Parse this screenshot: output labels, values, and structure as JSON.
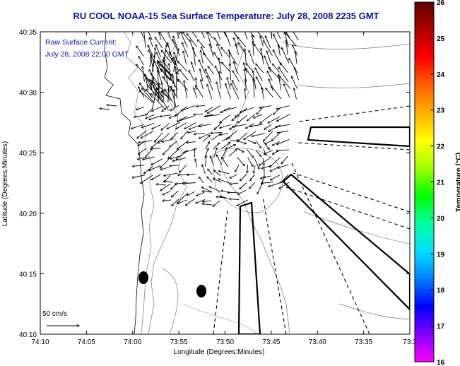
{
  "title": "RU COOL  NOAA-15  Sea Surface Temperature:  July 28, 2008 2235 GMT",
  "current_label": {
    "line1": "Raw Surface Current:",
    "line2": "July 28, 2008 22:00 GMT"
  },
  "scale_label": "50 cm/s",
  "axes": {
    "xlabel": "Longitude (Degrees:Minutes)",
    "ylabel": "Latitude (Degrees:Minutes)",
    "x_ticks": [
      "74:10",
      "74:05",
      "74:00",
      "73:55",
      "73:50",
      "73:45",
      "73:40",
      "73:35",
      "73:3"
    ],
    "y_ticks": [
      "40:35",
      "40:30",
      "40:25",
      "40:20",
      "40:15",
      "40:10"
    ]
  },
  "colorbar": {
    "label": "Temperature (°C)",
    "ticks": [
      "26",
      "25",
      "24",
      "23",
      "22",
      "21",
      "20",
      "19",
      "18",
      "17",
      "16"
    ],
    "min": 16,
    "max": 26,
    "colors": [
      "#ff00ff",
      "#8000ff",
      "#0000ff",
      "#0080ff",
      "#00e0ff",
      "#00ffa0",
      "#00ff00",
      "#a0ff00",
      "#ffff00",
      "#ffb000",
      "#ff6000",
      "#ff0000",
      "#b00000",
      "#600000"
    ]
  }
}
